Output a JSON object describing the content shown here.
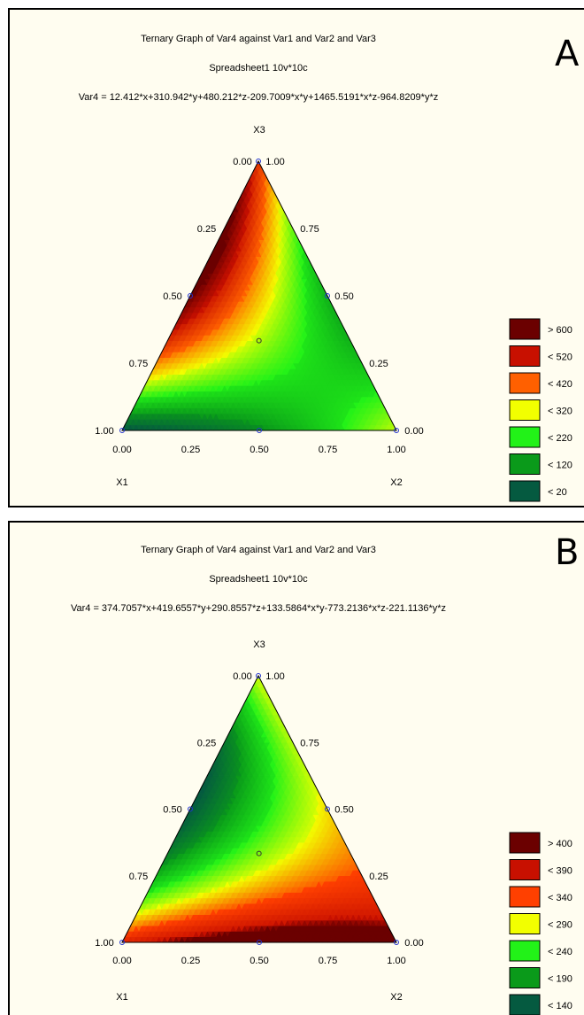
{
  "chart_data": [
    {
      "panel": "A",
      "type": "heatmap",
      "title": "Ternary Graph of Var4 against Var1 and Var2 and Var3",
      "subtitle": "Spreadsheet1 10v*10c",
      "equation": "Var4 = 12.412*x+310.942*y+480.212*z-209.7009*x*y+1465.5191*x*z-964.8209*y*z",
      "coef": {
        "x": 12.412,
        "y": 310.942,
        "z": 480.212,
        "xy": -209.7009,
        "xz": 1465.5191,
        "yz": -964.8209
      },
      "axes": {
        "top": "X3",
        "left": "X1",
        "right": "X2"
      },
      "tick_labels": {
        "top": "1.00",
        "top_left": "0.00",
        "left_edge": [
          "0.25",
          "0.50",
          "0.75"
        ],
        "right_edge": [
          "0.75",
          "0.50",
          "0.25"
        ],
        "bottom_left": "1.00",
        "bottom_right": "0.00",
        "bottom_axis": [
          "0.00",
          "0.25",
          "0.50",
          "0.75",
          "1.00"
        ]
      },
      "legend": {
        "placement": "right",
        "items": [
          {
            "label": "> 600",
            "color": "#6b0000",
            "min": 600
          },
          {
            "label": "< 520",
            "color": "#c81000",
            "min": 520
          },
          {
            "label": "< 420",
            "color": "#ff6000",
            "min": 420
          },
          {
            "label": "< 320",
            "color": "#f2ff00",
            "min": 320
          },
          {
            "label": "< 220",
            "color": "#22f218",
            "min": 220
          },
          {
            "label": "< 120",
            "color": "#0a9a1a",
            "min": 120
          },
          {
            "label": "< 20",
            "color": "#055a40",
            "min": -100000
          }
        ]
      }
    },
    {
      "panel": "B",
      "type": "heatmap",
      "title": "Ternary Graph of Var4 against Var1 and Var2 and Var3",
      "subtitle": "Spreadsheet1 10v*10c",
      "equation": "Var4 = 374.7057*x+419.6557*y+290.8557*z+133.5864*x*y-773.2136*x*z-221.1136*y*z",
      "coef": {
        "x": 374.7057,
        "y": 419.6557,
        "z": 290.8557,
        "xy": 133.5864,
        "xz": -773.2136,
        "yz": -221.1136
      },
      "axes": {
        "top": "X3",
        "left": "X1",
        "right": "X2"
      },
      "tick_labels": {
        "top": "1.00",
        "top_left": "0.00",
        "left_edge": [
          "0.25",
          "0.50",
          "0.75"
        ],
        "right_edge": [
          "0.75",
          "0.50",
          "0.25"
        ],
        "bottom_left": "1.00",
        "bottom_right": "0.00",
        "bottom_axis": [
          "0.00",
          "0.25",
          "0.50",
          "0.75",
          "1.00"
        ]
      },
      "legend": {
        "placement": "right",
        "items": [
          {
            "label": "> 400",
            "color": "#6b0000",
            "min": 400
          },
          {
            "label": "< 390",
            "color": "#c81000",
            "min": 390
          },
          {
            "label": "< 340",
            "color": "#ff4000",
            "min": 340
          },
          {
            "label": "< 290",
            "color": "#f2ff00",
            "min": 290
          },
          {
            "label": "< 240",
            "color": "#22f218",
            "min": 240
          },
          {
            "label": "< 190",
            "color": "#0a9a1a",
            "min": 190
          },
          {
            "label": "< 140",
            "color": "#055a40",
            "min": -100000
          }
        ]
      }
    }
  ]
}
